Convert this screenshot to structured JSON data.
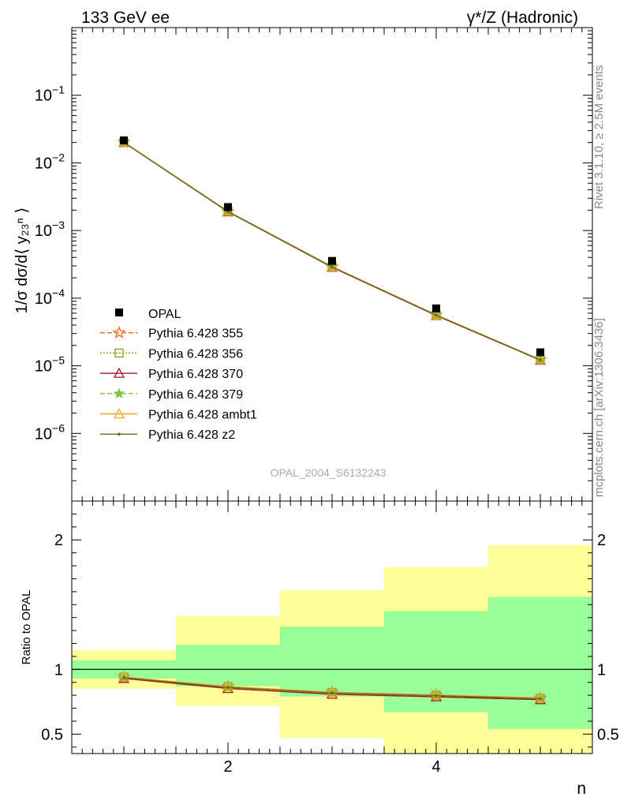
{
  "header": {
    "left_title": "133 GeV ee",
    "right_title": "γ*/Z (Hadronic)"
  },
  "side_labels": {
    "rivet": "Rivet 3.1.10, ≥ 2.5M events",
    "mcplots": "mcplots.cern.ch [arXiv:1306.3436]"
  },
  "watermark": "OPAL_2004_S6132243",
  "chart_data": [
    {
      "type": "scatter",
      "role": "main",
      "xlabel": "n",
      "ylabel": "1/σ dσ/d⟨ y₂₃ⁿ ⟩",
      "yscale": "log",
      "xlim": [
        0.5,
        5.5
      ],
      "ylim": [
        1e-07,
        1
      ],
      "yticks_major": [
        {
          "value": 1e-06,
          "label": "10",
          "exp": "−6"
        },
        {
          "value": 1e-05,
          "label": "10",
          "exp": "−5"
        },
        {
          "value": 0.0001,
          "label": "10",
          "exp": "−4"
        },
        {
          "value": 0.001,
          "label": "10",
          "exp": "−3"
        },
        {
          "value": 0.01,
          "label": "10",
          "exp": "−2"
        },
        {
          "value": 0.1,
          "label": "10",
          "exp": "−1"
        }
      ],
      "x": [
        1,
        2,
        3,
        4,
        5
      ],
      "data": {
        "name": "OPAL",
        "values": [
          0.0215,
          0.00222,
          0.000355,
          7.05e-05,
          1.58e-05
        ],
        "color": "#000000"
      },
      "series": [
        {
          "name": "Pythia 6.428 355",
          "color": "#ff6a1a",
          "dash": "6,3",
          "marker": "star-open",
          "values": [
            0.0202,
            0.00192,
            0.000292,
            5.65e-05,
            1.23e-05
          ]
        },
        {
          "name": "Pythia 6.428 356",
          "color": "#8a9a1a",
          "dash": "2,2",
          "marker": "square-open",
          "values": [
            0.0202,
            0.00192,
            0.000291,
            5.63e-05,
            1.23e-05
          ]
        },
        {
          "name": "Pythia 6.428 370",
          "color": "#a0182a",
          "dash": "",
          "marker": "triangle-open",
          "values": [
            0.02,
            0.00189,
            0.000286,
            5.55e-05,
            1.21e-05
          ]
        },
        {
          "name": "Pythia 6.428 379",
          "color": "#7fc43a",
          "dash": "6,3",
          "marker": "star-filled",
          "values": [
            0.0202,
            0.00192,
            0.000292,
            5.65e-05,
            1.23e-05
          ]
        },
        {
          "name": "Pythia 6.428 ambt1",
          "color": "#f5a623",
          "dash": "",
          "marker": "triangle-open",
          "values": [
            0.0202,
            0.00192,
            0.000291,
            5.63e-05,
            1.23e-05
          ]
        },
        {
          "name": "Pythia 6.428 z2",
          "color": "#6b6b1a",
          "dash": "",
          "marker": "dot",
          "values": [
            0.0201,
            0.00191,
            0.00029,
            5.61e-05,
            1.22e-05
          ]
        }
      ]
    },
    {
      "type": "line",
      "role": "ratio",
      "ylabel": "Ratio to OPAL",
      "xlim": [
        0.5,
        5.5
      ],
      "ylim": [
        0.35,
        2.3
      ],
      "xticks": [
        {
          "value": 2,
          "label": "2"
        },
        {
          "value": 4,
          "label": "4"
        }
      ],
      "yticks": [
        {
          "value": 0.5,
          "label": "0.5"
        },
        {
          "value": 1,
          "label": "1"
        },
        {
          "value": 2,
          "label": "2"
        }
      ],
      "bands": [
        {
          "x0": 0.5,
          "x1": 1.5,
          "stat": [
            0.93,
            1.07
          ],
          "total": [
            0.85,
            1.15
          ]
        },
        {
          "x0": 1.5,
          "x1": 2.5,
          "stat": [
            0.87,
            1.19
          ],
          "total": [
            0.72,
            1.41
          ]
        },
        {
          "x0": 2.5,
          "x1": 3.5,
          "stat": [
            0.79,
            1.33
          ],
          "total": [
            0.47,
            1.61
          ]
        },
        {
          "x0": 3.5,
          "x1": 4.5,
          "stat": [
            0.67,
            1.45
          ],
          "total": [
            0.35,
            1.79
          ]
        },
        {
          "x0": 4.5,
          "x1": 5.5,
          "stat": [
            0.54,
            1.56
          ],
          "total": [
            0.35,
            1.96
          ]
        }
      ],
      "band_colors": {
        "stat": "#99ff99",
        "total": "#ffff99"
      },
      "x": [
        1,
        2,
        3,
        4,
        5
      ],
      "series": [
        {
          "name": "Pythia 6.428 355",
          "values": [
            0.94,
            0.866,
            0.823,
            0.802,
            0.778
          ]
        },
        {
          "name": "Pythia 6.428 356",
          "values": [
            0.94,
            0.866,
            0.822,
            0.8,
            0.777
          ]
        },
        {
          "name": "Pythia 6.428 370",
          "values": [
            0.93,
            0.852,
            0.808,
            0.788,
            0.766
          ]
        },
        {
          "name": "Pythia 6.428 379",
          "values": [
            0.94,
            0.866,
            0.823,
            0.802,
            0.778
          ]
        },
        {
          "name": "Pythia 6.428 ambt1",
          "values": [
            0.941,
            0.867,
            0.824,
            0.803,
            0.78
          ]
        },
        {
          "name": "Pythia 6.428 z2",
          "values": [
            0.936,
            0.861,
            0.818,
            0.797,
            0.774
          ]
        }
      ]
    }
  ]
}
